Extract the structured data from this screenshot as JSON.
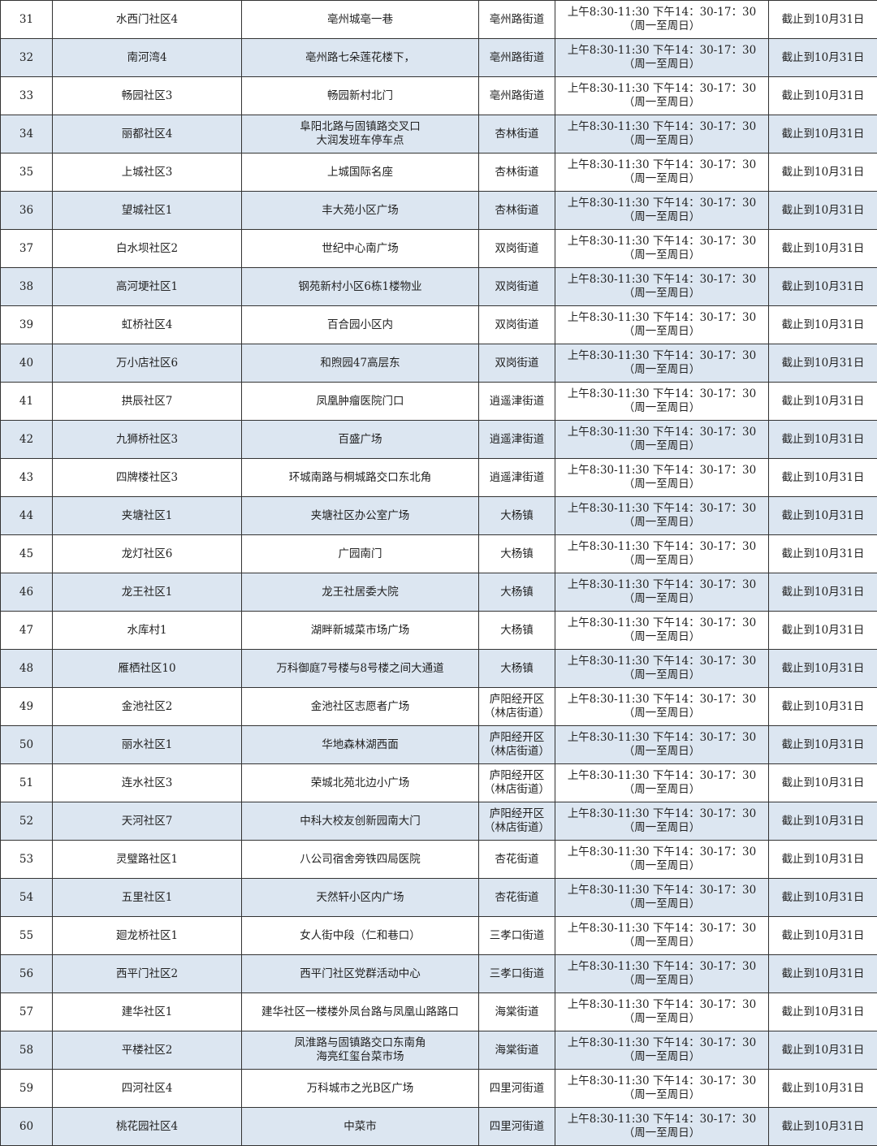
{
  "table": {
    "hours": [
      "上午8:30-11:30 下午14：30-17：30",
      "（周一至周日）"
    ],
    "deadline": "截止到10月31日",
    "rows": [
      {
        "no": "31",
        "community": "水西门社区4",
        "location": [
          "亳州城亳一巷"
        ],
        "street": [
          "亳州路街道"
        ]
      },
      {
        "no": "32",
        "community": "南河湾4",
        "location": [
          "亳州路七朵莲花楼下，"
        ],
        "street": [
          "亳州路街道"
        ]
      },
      {
        "no": "33",
        "community": "畅园社区3",
        "location": [
          "畅园新村北门"
        ],
        "street": [
          "亳州路街道"
        ]
      },
      {
        "no": "34",
        "community": "丽都社区4",
        "location": [
          "阜阳北路与固镇路交叉口",
          "大润发班车停车点"
        ],
        "street": [
          "杏林街道"
        ]
      },
      {
        "no": "35",
        "community": "上城社区3",
        "location": [
          "上城国际名座"
        ],
        "street": [
          "杏林街道"
        ]
      },
      {
        "no": "36",
        "community": "望城社区1",
        "location": [
          "丰大苑小区广场"
        ],
        "street": [
          "杏林街道"
        ]
      },
      {
        "no": "37",
        "community": "白水坝社区2",
        "location": [
          "世纪中心南广场"
        ],
        "street": [
          "双岗街道"
        ]
      },
      {
        "no": "38",
        "community": "高河埂社区1",
        "location": [
          "钢苑新村小区6栋1楼物业"
        ],
        "street": [
          "双岗街道"
        ]
      },
      {
        "no": "39",
        "community": "虹桥社区4",
        "location": [
          "百合园小区内"
        ],
        "street": [
          "双岗街道"
        ]
      },
      {
        "no": "40",
        "community": "万小店社区6",
        "location": [
          "和煦园47高层东"
        ],
        "street": [
          "双岗街道"
        ]
      },
      {
        "no": "41",
        "community": "拱辰社区7",
        "location": [
          "凤凰肿瘤医院门口"
        ],
        "street": [
          "逍遥津街道"
        ]
      },
      {
        "no": "42",
        "community": "九狮桥社区3",
        "location": [
          "百盛广场"
        ],
        "street": [
          "逍遥津街道"
        ]
      },
      {
        "no": "43",
        "community": "四牌楼社区3",
        "location": [
          "环城南路与桐城路交口东北角"
        ],
        "street": [
          "逍遥津街道"
        ]
      },
      {
        "no": "44",
        "community": "夹塘社区1",
        "location": [
          "夹塘社区办公室广场"
        ],
        "street": [
          "大杨镇"
        ]
      },
      {
        "no": "45",
        "community": "龙灯社区6",
        "location": [
          "广园南门"
        ],
        "street": [
          "大杨镇"
        ]
      },
      {
        "no": "46",
        "community": "龙王社区1",
        "location": [
          "龙王社居委大院"
        ],
        "street": [
          "大杨镇"
        ]
      },
      {
        "no": "47",
        "community": "水库村1",
        "location": [
          "湖畔新城菜市场广场"
        ],
        "street": [
          "大杨镇"
        ]
      },
      {
        "no": "48",
        "community": "雁栖社区10",
        "location": [
          "万科御庭7号楼与8号楼之间大通道"
        ],
        "street": [
          "大杨镇"
        ]
      },
      {
        "no": "49",
        "community": "金池社区2",
        "location": [
          "金池社区志愿者广场"
        ],
        "street": [
          "庐阳经开区",
          "（林店街道）"
        ]
      },
      {
        "no": "50",
        "community": "丽水社区1",
        "location": [
          "华地森林湖西面"
        ],
        "street": [
          "庐阳经开区",
          "（林店街道）"
        ]
      },
      {
        "no": "51",
        "community": "连水社区3",
        "location": [
          "荣城北苑北边小广场"
        ],
        "street": [
          "庐阳经开区",
          "（林店街道）"
        ]
      },
      {
        "no": "52",
        "community": "天河社区7",
        "location": [
          "中科大校友创新园南大门"
        ],
        "street": [
          "庐阳经开区",
          "（林店街道）"
        ]
      },
      {
        "no": "53",
        "community": "灵璧路社区1",
        "location": [
          "八公司宿舍旁铁四局医院"
        ],
        "street": [
          "杏花街道"
        ]
      },
      {
        "no": "54",
        "community": "五里社区1",
        "location": [
          "天然轩小区内广场"
        ],
        "street": [
          "杏花街道"
        ]
      },
      {
        "no": "55",
        "community": "廻龙桥社区1",
        "location": [
          "女人街中段（仁和巷口）"
        ],
        "street": [
          "三孝口街道"
        ]
      },
      {
        "no": "56",
        "community": "西平门社区2",
        "location": [
          "西平门社区党群活动中心"
        ],
        "street": [
          "三孝口街道"
        ]
      },
      {
        "no": "57",
        "community": "建华社区1",
        "location": [
          "建华社区一楼楼外凤台路与凤凰山路路口"
        ],
        "street": [
          "海棠街道"
        ]
      },
      {
        "no": "58",
        "community": "平楼社区2",
        "location": [
          "凤淮路与固镇路交口东南角",
          "海亮红玺台菜市场"
        ],
        "street": [
          "海棠街道"
        ]
      },
      {
        "no": "59",
        "community": "四河社区4",
        "location": [
          "万科城市之光B区广场"
        ],
        "street": [
          "四里河街道"
        ]
      },
      {
        "no": "60",
        "community": "桃花园社区4",
        "location": [
          "中菜市"
        ],
        "street": [
          "四里河街道"
        ]
      }
    ]
  }
}
